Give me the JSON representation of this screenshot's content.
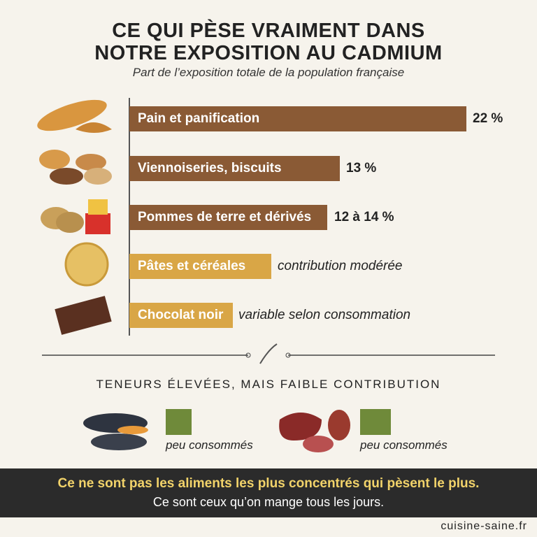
{
  "header": {
    "title_line1": "CE QUI PÈSE VRAIMENT DANS",
    "title_line2": "NOTRE EXPOSITION AU CADMIUM",
    "subtitle": "Part de l’exposition totale de la population française"
  },
  "items": [
    {
      "label": "Pain et panification",
      "value": "22 %"
    },
    {
      "label": "Viennoiseries, biscuits",
      "value": "13 %"
    },
    {
      "label": "Pommes de terre et dérivés",
      "value": "12 à 14 %"
    },
    {
      "label": "Pâtes et céréales",
      "value": "contribution modérée"
    },
    {
      "label": "Chocolat noir",
      "value": "variable selon consommation"
    }
  ],
  "section": {
    "title": "TENEURS ÉLEVÉES, MAIS FAIBLE CONTRIBUTION",
    "groups": [
      {
        "caption": "peu consommés"
      },
      {
        "caption": "peu consommés"
      }
    ]
  },
  "banner": {
    "line1": "Ce ne sont pas les aliments les plus concentrés qui pèsent le plus.",
    "line2": "Ce sont ceux qu’on mange tous les jours."
  },
  "footer": {
    "site": "cuisine-saine.fr"
  }
}
